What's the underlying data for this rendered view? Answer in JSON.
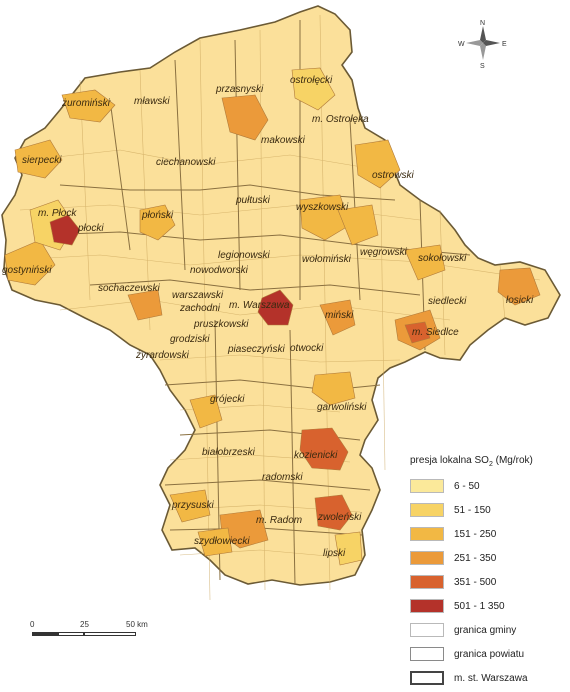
{
  "legend": {
    "title_prefix": "presja lokalna SO",
    "title_sub": "2",
    "title_suffix": " (Mg/rok)",
    "classes": [
      {
        "label": "6 - 50",
        "color": "#fbe99a"
      },
      {
        "label": "51 - 150",
        "color": "#f7d365"
      },
      {
        "label": "151 - 250",
        "color": "#f2b844"
      },
      {
        "label": "251 - 350",
        "color": "#eb9a3a"
      },
      {
        "label": "351 - 500",
        "color": "#d8622e"
      },
      {
        "label": "501 - 1 350",
        "color": "#b4322a"
      }
    ],
    "boundaries": {
      "gmina": "granica gminy",
      "powiat": "granica powiatu",
      "warszawa": "m. st. Warszawa"
    }
  },
  "scale": {
    "zero": "0",
    "mid": "25",
    "end": "50 km"
  },
  "compass": {
    "n": "N",
    "s": "S",
    "e": "E",
    "w": "W"
  },
  "counties": {
    "zurominski": "żuromiński",
    "mlawski": "mławski",
    "przasnyski": "przasnyski",
    "ostrolecki": "ostrołęcki",
    "m_ostroleka": "m. Ostrołęka",
    "makowski": "makowski",
    "sierpecki": "sierpecki",
    "ciechanowski": "ciechanowski",
    "ostrowski": "ostrowski",
    "m_plock": "m. Płock",
    "plonski": "płoński",
    "pultuski": "pułtuski",
    "wyszkowski": "wyszkowski",
    "plocki": "płocki",
    "gostyninski": "gostyniński",
    "legionowski": "legionowski",
    "wolominski": "wołomiński",
    "wegrowski": "węgrowski",
    "sokolowski": "sokołowski",
    "sochaczewski": "sochaczewski",
    "nowodworski": "nowodworski",
    "warszawski_zach_1": "warszawski",
    "warszawski_zach_2": "zachodni",
    "m_warszawa": "m. Warszawa",
    "siedlecki": "siedlecki",
    "losicki": "łosicki",
    "minski": "miński",
    "pruszkowski": "pruszkowski",
    "m_siedlce": "m. Siedlce",
    "grodziski": "grodziski",
    "zyrardowski": "żyrardowski",
    "piaseczynski": "piaseczyński",
    "otwocki": "otwocki",
    "grojecki": "grójecki",
    "garwolinski": "garwoliński",
    "bialobrzeski": "białobrzeski",
    "kozienicki": "kozienicki",
    "radomski": "radomski",
    "przysuski": "przysuski",
    "m_radom": "m. Radom",
    "zwolenski": "zwoleński",
    "szydlowiecki": "szydłowiecki",
    "lipski": "lipski"
  }
}
